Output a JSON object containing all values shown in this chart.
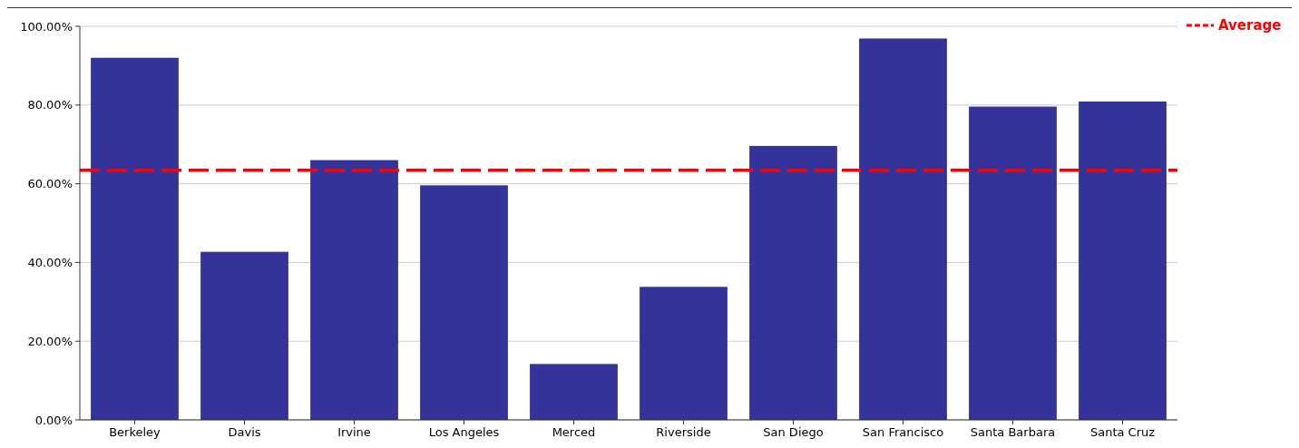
{
  "chart_data": {
    "type": "bar",
    "categories": [
      "Berkeley",
      "Davis",
      "Irvine",
      "Los Angeles",
      "Merced",
      "Riverside",
      "San Diego",
      "San Francisco",
      "Santa Barbara",
      "Santa Cruz"
    ],
    "values": [
      92.0,
      42.7,
      66.0,
      59.6,
      14.2,
      33.8,
      69.6,
      96.9,
      79.6,
      80.9
    ],
    "color": "#343399",
    "ylim": [
      0,
      100
    ],
    "yticks": [
      {
        "value": 0,
        "label": "0.00%"
      },
      {
        "value": 20,
        "label": "20.00%"
      },
      {
        "value": 40,
        "label": "40.00%"
      },
      {
        "value": 60,
        "label": "60.00%"
      },
      {
        "value": 80,
        "label": "80.00%"
      },
      {
        "value": 100,
        "label": "100.00%"
      }
    ],
    "grid": "y",
    "ref_lines": [
      {
        "axis": "y",
        "value": 63.4,
        "label": "Average",
        "color": "#ff0000",
        "line_style": "dashed"
      }
    ],
    "legend": "top right"
  }
}
